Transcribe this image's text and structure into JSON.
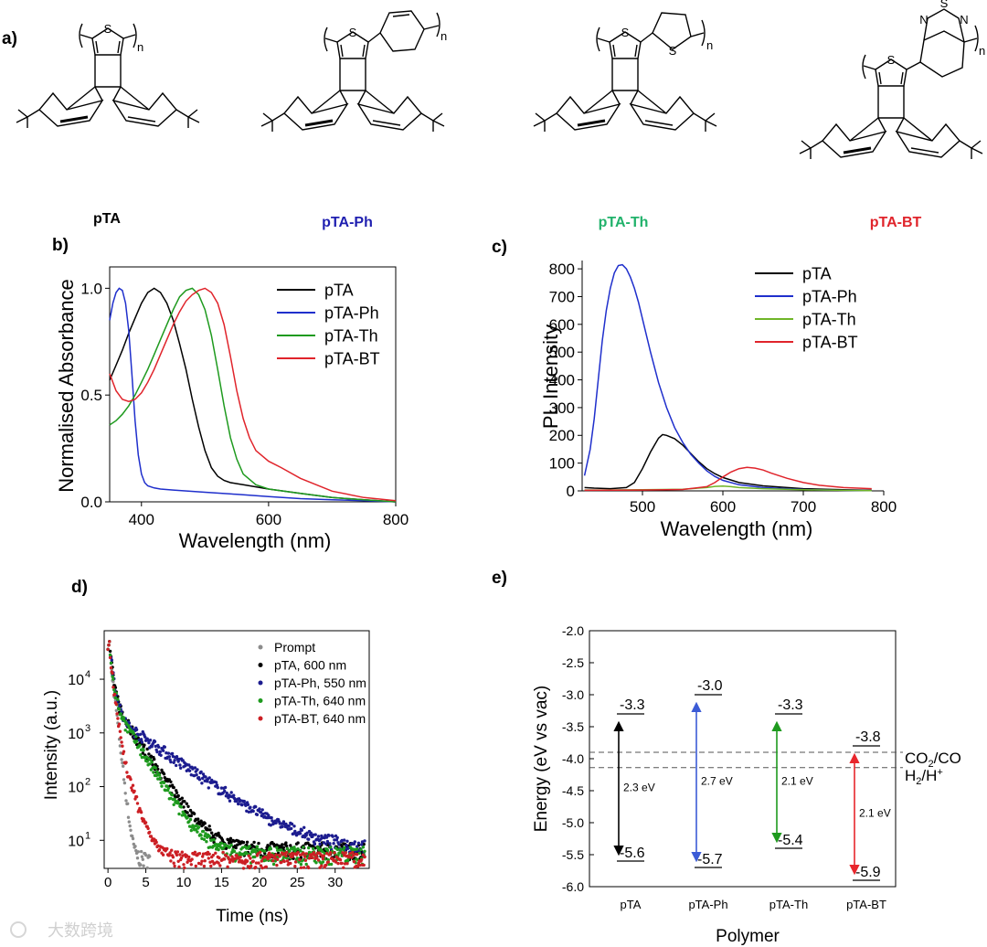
{
  "panel_a": {
    "label": "a)",
    "molecules": [
      {
        "name": "pTA",
        "color": "#000000",
        "aryl": "",
        "n": "n",
        "s": "S"
      },
      {
        "name": "pTA-Ph",
        "color": "#1f1fb0",
        "aryl": "phenyl",
        "n": "n",
        "s": "S"
      },
      {
        "name": "pTA-Th",
        "color": "#21b26b",
        "aryl": "thiophene",
        "n": "n",
        "s": "S"
      },
      {
        "name": "pTA-BT",
        "color": "#e0242b",
        "aryl": "benzothiadiazole",
        "n": "n",
        "s": "S",
        "bt_atoms": {
          "s": "S",
          "n1": "N",
          "n2": "N"
        }
      }
    ]
  },
  "chart_data": [
    {
      "id": "b",
      "label": "b)",
      "type": "line",
      "xlabel": "Wavelength (nm)",
      "ylabel": "Normalised Absorbance",
      "xlim": [
        350,
        800
      ],
      "ylim": [
        0,
        1.1
      ],
      "xticks": [
        "400",
        "600",
        "800"
      ],
      "yticks": [
        "0.0",
        "0.5",
        "1.0"
      ],
      "legend_position": "top-right",
      "series": [
        {
          "name": "pTA",
          "color": "#000000",
          "x": [
            350,
            360,
            370,
            380,
            390,
            400,
            410,
            420,
            430,
            440,
            450,
            460,
            470,
            480,
            490,
            500,
            510,
            520,
            530,
            540,
            550,
            560,
            580,
            600,
            650,
            700,
            750,
            800
          ],
          "y": [
            0.57,
            0.64,
            0.71,
            0.79,
            0.86,
            0.93,
            0.98,
            1.0,
            0.98,
            0.93,
            0.85,
            0.74,
            0.62,
            0.48,
            0.35,
            0.24,
            0.16,
            0.12,
            0.1,
            0.09,
            0.085,
            0.08,
            0.07,
            0.06,
            0.04,
            0.02,
            0.01,
            0.0
          ]
        },
        {
          "name": "pTA-Ph",
          "color": "#1f2fcc",
          "x": [
            350,
            355,
            360,
            365,
            370,
            375,
            380,
            385,
            390,
            395,
            400,
            405,
            410,
            420,
            430,
            450,
            500,
            550,
            600,
            650,
            700,
            750,
            800
          ],
          "y": [
            0.85,
            0.93,
            0.98,
            1.0,
            0.99,
            0.93,
            0.8,
            0.6,
            0.38,
            0.22,
            0.13,
            0.09,
            0.075,
            0.065,
            0.06,
            0.055,
            0.045,
            0.035,
            0.025,
            0.015,
            0.01,
            0.005,
            0.0
          ]
        },
        {
          "name": "pTA-Th",
          "color": "#1e9a1e",
          "x": [
            350,
            360,
            370,
            380,
            390,
            400,
            410,
            420,
            430,
            440,
            450,
            460,
            470,
            480,
            490,
            500,
            510,
            520,
            530,
            540,
            550,
            560,
            580,
            600,
            650,
            700,
            750,
            800
          ],
          "y": [
            0.36,
            0.38,
            0.41,
            0.45,
            0.5,
            0.56,
            0.62,
            0.69,
            0.76,
            0.83,
            0.9,
            0.96,
            0.99,
            1.0,
            0.97,
            0.9,
            0.78,
            0.62,
            0.45,
            0.3,
            0.2,
            0.13,
            0.08,
            0.06,
            0.04,
            0.02,
            0.01,
            0.0
          ]
        },
        {
          "name": "pTA-BT",
          "color": "#e0242b",
          "x": [
            350,
            360,
            370,
            380,
            390,
            400,
            410,
            420,
            430,
            440,
            450,
            460,
            470,
            480,
            490,
            500,
            510,
            520,
            530,
            540,
            550,
            560,
            570,
            580,
            600,
            620,
            650,
            700,
            750,
            800
          ],
          "y": [
            0.6,
            0.52,
            0.48,
            0.47,
            0.48,
            0.51,
            0.56,
            0.62,
            0.69,
            0.76,
            0.83,
            0.89,
            0.94,
            0.97,
            0.99,
            1.0,
            0.98,
            0.93,
            0.83,
            0.68,
            0.52,
            0.39,
            0.3,
            0.24,
            0.19,
            0.16,
            0.11,
            0.05,
            0.02,
            0.005
          ]
        }
      ]
    },
    {
      "id": "c",
      "label": "c)",
      "type": "line",
      "xlabel": "Wavelength (nm)",
      "ylabel": "PL Intensity",
      "xlim": [
        425,
        800
      ],
      "ylim": [
        0,
        830
      ],
      "xticks": [
        "500",
        "600",
        "700",
        "800"
      ],
      "yticks": [
        "0",
        "100",
        "200",
        "300",
        "400",
        "500",
        "600",
        "700",
        "800"
      ],
      "legend_position": "top-right",
      "series": [
        {
          "name": "pTA",
          "color": "#000000",
          "x": [
            428,
            440,
            460,
            480,
            490,
            500,
            510,
            520,
            525,
            530,
            540,
            550,
            560,
            570,
            580,
            590,
            600,
            620,
            650,
            700,
            750,
            785
          ],
          "y": [
            12,
            10,
            8,
            12,
            30,
            80,
            140,
            190,
            203,
            200,
            188,
            165,
            135,
            105,
            80,
            62,
            48,
            30,
            18,
            8,
            4,
            2
          ]
        },
        {
          "name": "pTA-Ph",
          "color": "#1f2fcc",
          "x": [
            428,
            435,
            440,
            445,
            450,
            455,
            460,
            465,
            470,
            475,
            480,
            485,
            490,
            495,
            500,
            510,
            520,
            530,
            540,
            550,
            560,
            570,
            580,
            590,
            600,
            620,
            650,
            700,
            750,
            785
          ],
          "y": [
            55,
            150,
            260,
            400,
            540,
            650,
            730,
            785,
            812,
            815,
            800,
            770,
            730,
            680,
            620,
            500,
            390,
            300,
            228,
            175,
            132,
            100,
            72,
            52,
            38,
            22,
            12,
            5,
            2,
            1
          ]
        },
        {
          "name": "pTA-Th",
          "color": "#6fb528",
          "x": [
            428,
            450,
            500,
            550,
            580,
            590,
            600,
            610,
            620,
            650,
            700,
            750,
            785
          ],
          "y": [
            3,
            3,
            4,
            6,
            12,
            16,
            17,
            15,
            12,
            8,
            4,
            2,
            1
          ]
        },
        {
          "name": "pTA-BT",
          "color": "#e0242b",
          "x": [
            428,
            500,
            550,
            580,
            590,
            600,
            610,
            620,
            630,
            640,
            650,
            660,
            680,
            700,
            720,
            750,
            785
          ],
          "y": [
            2,
            3,
            5,
            15,
            30,
            50,
            68,
            80,
            85,
            82,
            75,
            64,
            45,
            30,
            20,
            12,
            8
          ]
        }
      ]
    },
    {
      "id": "d",
      "label": "d)",
      "type": "scatter",
      "xlabel": "Time (ns)",
      "ylabel": "Intensity (a.u.)",
      "xlim": [
        -0.5,
        34.5
      ],
      "ylim": [
        3,
        80000
      ],
      "yscale": "log",
      "xticks": [
        "0",
        "5",
        "10",
        "15",
        "20",
        "25",
        "30"
      ],
      "yticks": [
        {
          "base": "10",
          "exp": "1"
        },
        {
          "base": "10",
          "exp": "2"
        },
        {
          "base": "10",
          "exp": "3"
        },
        {
          "base": "10",
          "exp": "4"
        }
      ],
      "legend_position": "top-right",
      "series": [
        {
          "name": "Prompt",
          "color": "#8c8c8c",
          "amplitude": 60000,
          "decay": [
            [
              1.0,
              0.35
            ]
          ],
          "baseline": 4,
          "t_end": 5.5
        },
        {
          "name": "pTA, 600 nm",
          "color": "#000000",
          "amplitude": 60000,
          "decay": [
            [
              0.92,
              0.35
            ],
            [
              0.08,
              2.1
            ]
          ],
          "baseline": 6,
          "t_end": 34
        },
        {
          "name": "pTA-Ph, 550 nm",
          "color": "#1c1c8f",
          "amplitude": 60000,
          "decay": [
            [
              0.96,
              0.4
            ],
            [
              0.04,
              4.4
            ]
          ],
          "baseline": 6,
          "t_end": 34
        },
        {
          "name": "pTA-Th, 640 nm",
          "color": "#1e9a1e",
          "amplitude": 60000,
          "decay": [
            [
              0.92,
              0.33
            ],
            [
              0.08,
              1.9
            ]
          ],
          "baseline": 5,
          "t_end": 34
        },
        {
          "name": "pTA-BT, 640 nm",
          "color": "#cc1f24",
          "amplitude": 60000,
          "decay": [
            [
              0.97,
              0.35
            ],
            [
              0.03,
              1.05
            ]
          ],
          "baseline": 4,
          "t_end": 34
        }
      ]
    },
    {
      "id": "e",
      "label": "e)",
      "type": "diagram",
      "xlabel": "Polymer",
      "ylabel": "Energy (eV vs vac)",
      "ylim": [
        -6.0,
        -2.0
      ],
      "yticks": [
        "-2.0",
        "-2.5",
        "-3.0",
        "-3.5",
        "-4.0",
        "-4.5",
        "-5.0",
        "-5.5",
        "-6.0"
      ],
      "categories": [
        "pTA",
        "pTA-Ph",
        "pTA-Th",
        "pTA-BT"
      ],
      "levels": [
        {
          "polymer": "pTA",
          "lumo": -3.3,
          "homo": -5.6,
          "lumo_label": "-3.3",
          "homo_label": "-5.6",
          "gap_label": "2.3 eV",
          "color": "#000000"
        },
        {
          "polymer": "pTA-Ph",
          "lumo": -3.0,
          "homo": -5.7,
          "lumo_label": "-3.0",
          "homo_label": "-5.7",
          "gap_label": "2.7 eV",
          "color": "#3b5bd6"
        },
        {
          "polymer": "pTA-Th",
          "lumo": -3.3,
          "homo": -5.4,
          "lumo_label": "-3.3",
          "homo_label": "-5.4",
          "gap_label": "2.1 eV",
          "color": "#1e9a1e"
        },
        {
          "polymer": "pTA-BT",
          "lumo": -3.8,
          "homo": -5.9,
          "lumo_label": "-3.8",
          "homo_label": "-5.9",
          "gap_label": "2.1 eV",
          "color": "#e8262c"
        }
      ],
      "reference_lines": [
        {
          "value": -3.9,
          "label": "CO",
          "sub": "2",
          "label_rest": "/CO"
        },
        {
          "value": -4.14,
          "label": "H",
          "sub": "2",
          "label_rest": "/H",
          "sup": "+"
        }
      ]
    }
  ],
  "watermark": "大数跨境"
}
